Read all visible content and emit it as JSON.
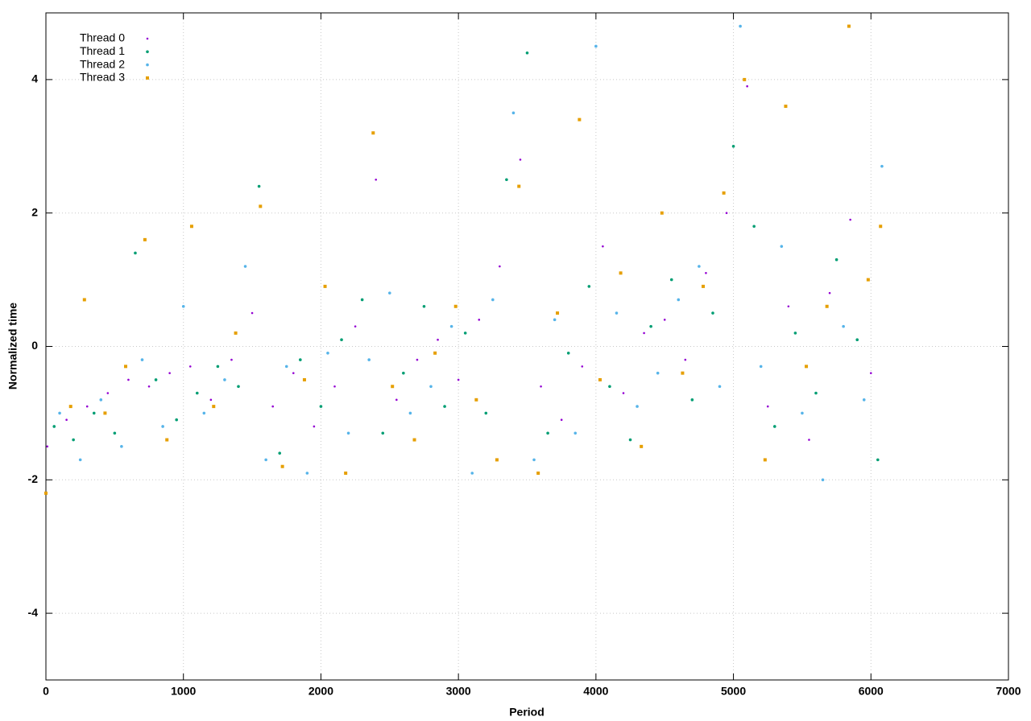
{
  "chart_data": {
    "type": "scatter",
    "x_label": "Period",
    "y_label": "Normalized time",
    "xlim": [
      0,
      7000
    ],
    "xticks": [
      0,
      1000,
      2000,
      3000,
      4000,
      5000,
      6000,
      7000
    ],
    "ylim": [
      -5,
      5
    ],
    "yticks": [
      -4,
      -2,
      0,
      2,
      4
    ],
    "grid": true,
    "legend": "upper left",
    "series": [
      {
        "name": "Thread 0",
        "color": "#9400d3",
        "x": [
          10,
          150,
          300,
          450,
          600,
          750,
          900,
          1050,
          1200,
          1350,
          1500,
          1650,
          1800,
          1950,
          2100,
          2250,
          2400,
          2550,
          2700,
          2850,
          3000,
          3150,
          3300,
          3450,
          3600,
          3750,
          3900,
          4050,
          4200,
          4350,
          4500,
          4650,
          4800,
          4950,
          5100,
          5250,
          5400,
          5550,
          5700,
          5850,
          6000
        ],
        "values": [
          -1.5,
          -1.1,
          -0.9,
          -0.7,
          -0.5,
          -0.6,
          -0.4,
          -0.3,
          -0.8,
          -0.2,
          0.5,
          -0.9,
          -0.4,
          -1.2,
          -0.6,
          0.3,
          2.5,
          -0.8,
          -0.2,
          0.1,
          -0.5,
          0.4,
          1.2,
          2.8,
          -0.6,
          -1.1,
          -0.3,
          1.5,
          -0.7,
          0.2,
          0.4,
          -0.2,
          1.1,
          2.0,
          3.9,
          -0.9,
          0.6,
          -1.4,
          0.8,
          1.9,
          -0.4
        ]
      },
      {
        "name": "Thread 1",
        "color": "#009e73",
        "x": [
          60,
          200,
          350,
          500,
          650,
          800,
          950,
          1100,
          1250,
          1400,
          1550,
          1700,
          1850,
          2000,
          2150,
          2300,
          2450,
          2600,
          2750,
          2900,
          3050,
          3200,
          3350,
          3500,
          3650,
          3800,
          3950,
          4100,
          4250,
          4400,
          4550,
          4700,
          4850,
          5000,
          5150,
          5300,
          5450,
          5600,
          5750,
          5900,
          6050
        ],
        "values": [
          -1.2,
          -1.4,
          -1.0,
          -1.3,
          1.4,
          -0.5,
          -1.1,
          -0.7,
          -0.3,
          -0.6,
          2.4,
          -1.6,
          -0.2,
          -0.9,
          0.1,
          0.7,
          -1.3,
          -0.4,
          0.6,
          -0.9,
          0.2,
          -1.0,
          2.5,
          4.4,
          -1.3,
          -0.1,
          0.9,
          -0.6,
          -1.4,
          0.3,
          1.0,
          -0.8,
          0.5,
          3.0,
          1.8,
          -1.2,
          0.2,
          -0.7,
          1.3,
          0.1,
          -1.7
        ]
      },
      {
        "name": "Thread 2",
        "color": "#56b4e9",
        "x": [
          100,
          250,
          400,
          550,
          700,
          850,
          1000,
          1150,
          1300,
          1450,
          1600,
          1750,
          1900,
          2050,
          2200,
          2350,
          2500,
          2650,
          2800,
          2950,
          3100,
          3250,
          3400,
          3550,
          3700,
          3850,
          4000,
          4150,
          4300,
          4450,
          4600,
          4750,
          4900,
          5050,
          5200,
          5350,
          5500,
          5650,
          5800,
          5950,
          6080
        ],
        "values": [
          -1.0,
          -1.7,
          -0.8,
          -1.5,
          -0.2,
          -1.2,
          0.6,
          -1.0,
          -0.5,
          1.2,
          -1.7,
          -0.3,
          -1.9,
          -0.1,
          -1.3,
          -0.2,
          0.8,
          -1.0,
          -0.6,
          0.3,
          -1.9,
          0.7,
          3.5,
          -1.7,
          0.4,
          -1.3,
          4.5,
          0.5,
          -0.9,
          -0.4,
          0.7,
          1.2,
          -0.6,
          4.8,
          -0.3,
          1.5,
          -1.0,
          -2.0,
          0.3,
          -0.8,
          2.7
        ]
      },
      {
        "name": "Thread 3",
        "color": "#e69f00",
        "x": [
          0,
          180,
          280,
          430,
          580,
          720,
          880,
          1060,
          1220,
          1380,
          1560,
          1720,
          1880,
          2030,
          2180,
          2380,
          2520,
          2680,
          2830,
          2980,
          3130,
          3280,
          3440,
          3580,
          3720,
          3880,
          4030,
          4180,
          4330,
          4480,
          4630,
          4780,
          4930,
          5080,
          5230,
          5380,
          5530,
          5680,
          5840,
          5980,
          6070
        ],
        "values": [
          -2.2,
          -0.9,
          0.7,
          -1.0,
          -0.3,
          1.6,
          -1.4,
          1.8,
          -0.9,
          0.2,
          2.1,
          -1.8,
          -0.5,
          0.9,
          -1.9,
          3.2,
          -0.6,
          -1.4,
          -0.1,
          0.6,
          -0.8,
          -1.7,
          2.4,
          -1.9,
          0.5,
          3.4,
          -0.5,
          1.1,
          -1.5,
          2.0,
          -0.4,
          0.9,
          2.3,
          4.0,
          -1.7,
          3.6,
          -0.3,
          0.6,
          4.8,
          1.0,
          1.8
        ]
      }
    ]
  }
}
